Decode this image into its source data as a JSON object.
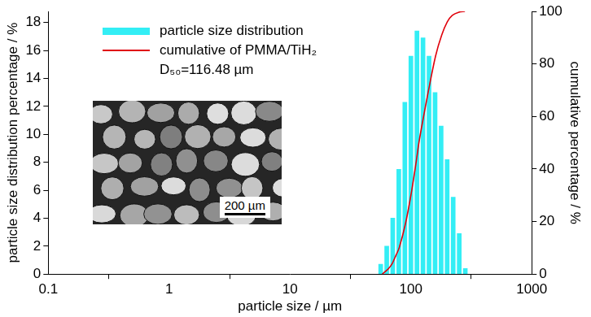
{
  "chart_data": {
    "type": "bar",
    "x_label": "particle size / µm",
    "y_label": "particle size distribution percentage / %",
    "y2_label": "cumulative percentage / %",
    "log": "x",
    "grid": false,
    "legend": "upper left",
    "xlim": [
      0.1,
      1000
    ],
    "xticks": [
      0.1,
      1,
      10,
      100,
      1000
    ],
    "ylim": [
      0,
      18.8
    ],
    "yticks": [
      0,
      2,
      4,
      6,
      8,
      10,
      12,
      14,
      16,
      18
    ],
    "y2lim": [
      0,
      100
    ],
    "y2ticks": [
      0,
      20,
      40,
      60,
      80,
      100
    ],
    "bins": [
      53.1,
      59.6,
      66.8,
      75.0,
      84.1,
      94.4,
      105.9,
      118.9,
      133.4,
      149.6,
      167.9,
      188.4,
      211.3,
      237.1,
      266.1,
      298.5
    ],
    "series": [
      {
        "name": "particle size distribution",
        "type": "bar",
        "color": "#33eef5",
        "values": [
          0.7,
          2.0,
          4.0,
          7.5,
          12.3,
          15.6,
          17.4,
          16.9,
          15.6,
          13.0,
          10.6,
          8.2,
          5.5,
          2.9,
          0.4
        ]
      },
      {
        "name": "cumulative of PMMA/TiH₂",
        "type": "line",
        "color": "#e0000b",
        "axis": "y2",
        "x": [
          58,
          65,
          70,
          75,
          80,
          90,
          100,
          110,
          116.48,
          125,
          140,
          160,
          180,
          200,
          220,
          250,
          280
        ],
        "values": [
          0,
          2,
          4,
          7,
          10,
          19,
          30,
          42,
          50,
          58,
          70,
          83,
          91,
          96,
          98.5,
          99.7,
          100
        ]
      }
    ],
    "annotations": [
      "D₅₀=116.48 µm",
      "200 µm"
    ]
  }
}
